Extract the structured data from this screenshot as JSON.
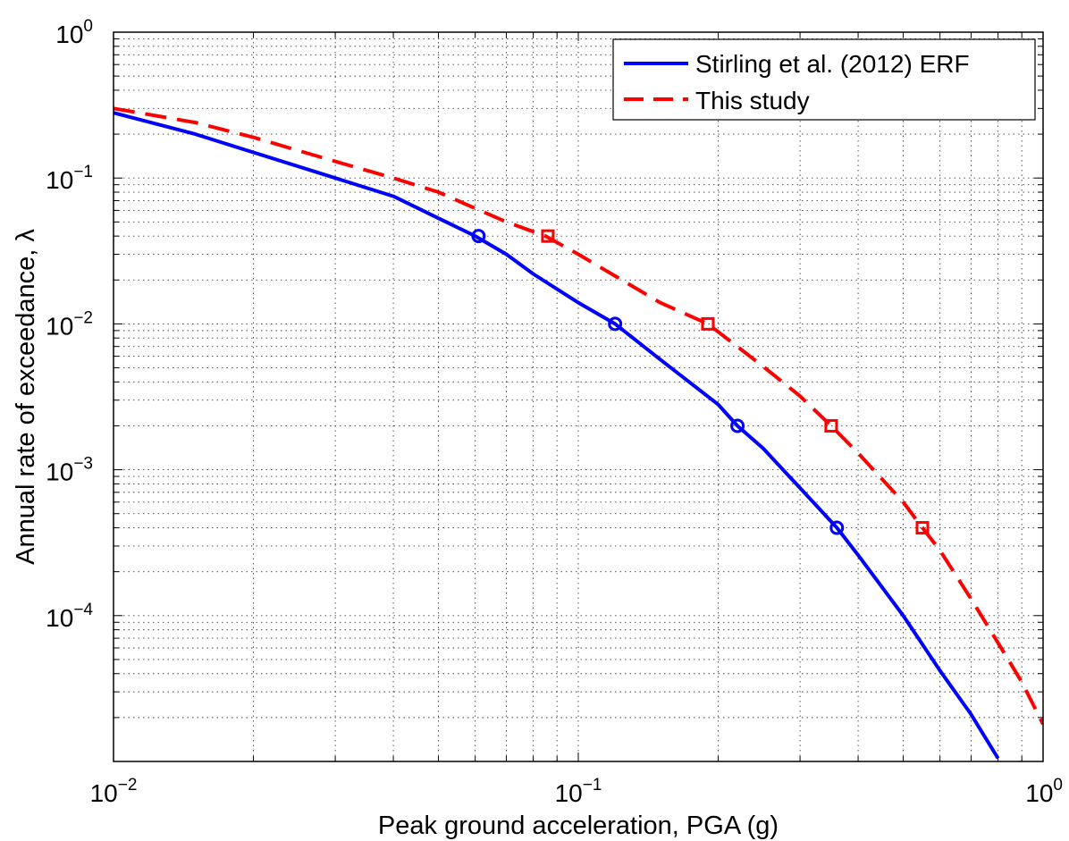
{
  "chart_data": {
    "type": "line",
    "xscale": "log",
    "yscale": "log",
    "xlim": [
      0.01,
      1
    ],
    "ylim": [
      1e-05,
      1
    ],
    "grid": true,
    "xlabel": "Peak ground acceleration, PGA (g)",
    "ylabel": "Annual rate of exceedance, λ",
    "x_ticks": [
      {
        "base": "10",
        "exp": "−2"
      },
      {
        "base": "10",
        "exp": "−1"
      },
      {
        "base": "10",
        "exp": "0"
      }
    ],
    "y_ticks": [
      {
        "base": "10",
        "exp": "0"
      },
      {
        "base": "10",
        "exp": "−1"
      },
      {
        "base": "10",
        "exp": "−2"
      },
      {
        "base": "10",
        "exp": "−3"
      },
      {
        "base": "10",
        "exp": "−4"
      }
    ],
    "legend_position": "top-right",
    "series": [
      {
        "name": "Stirling et al. (2012) ERF",
        "color": "#0000ff",
        "line_style": "solid",
        "x": [
          0.01,
          0.015,
          0.02,
          0.03,
          0.04,
          0.05,
          0.06,
          0.07,
          0.08,
          0.1,
          0.12,
          0.15,
          0.2,
          0.22,
          0.25,
          0.3,
          0.36,
          0.4,
          0.5,
          0.6,
          0.7,
          0.8
        ],
        "y": [
          0.28,
          0.2,
          0.15,
          0.1,
          0.075,
          0.053,
          0.04,
          0.03,
          0.022,
          0.014,
          0.01,
          0.0057,
          0.0028,
          0.002,
          0.0014,
          0.00075,
          0.0004,
          0.00026,
          0.0001,
          4.2e-05,
          2.1e-05,
          1.05e-05
        ]
      },
      {
        "name": "This study",
        "color": "#ff0000",
        "line_style": "dashed",
        "x": [
          0.01,
          0.015,
          0.02,
          0.03,
          0.04,
          0.05,
          0.06,
          0.07,
          0.085,
          0.1,
          0.15,
          0.19,
          0.25,
          0.3,
          0.35,
          0.4,
          0.5,
          0.55,
          0.6,
          0.7,
          0.8,
          0.9,
          1.0
        ],
        "y": [
          0.3,
          0.24,
          0.19,
          0.13,
          0.1,
          0.08,
          0.062,
          0.05,
          0.04,
          0.03,
          0.014,
          0.01,
          0.0051,
          0.0032,
          0.002,
          0.0013,
          0.0006,
          0.0004,
          0.00028,
          0.00013,
          6.5e-05,
          3.5e-05,
          1.8e-05
        ]
      }
    ],
    "markers": [
      {
        "series": "Stirling et al. (2012) ERF",
        "shape": "circle",
        "color": "#0000ff",
        "x": [
          0.061,
          0.12,
          0.22,
          0.36
        ],
        "y": [
          0.04,
          0.01,
          0.002,
          0.0004
        ]
      },
      {
        "series": "This study",
        "shape": "square",
        "color": "#ff0000",
        "x": [
          0.086,
          0.19,
          0.35,
          0.55
        ],
        "y": [
          0.04,
          0.01,
          0.002,
          0.0004
        ]
      }
    ]
  }
}
